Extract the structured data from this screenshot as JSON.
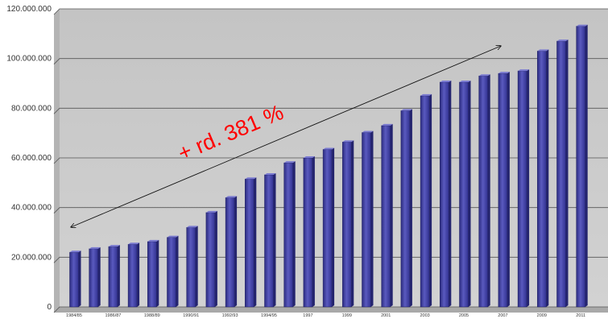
{
  "chart_data": {
    "type": "bar",
    "title": "",
    "xlabel": "",
    "ylabel": "",
    "ylim": [
      0,
      120000000
    ],
    "y_ticks": [
      0,
      20000000,
      40000000,
      60000000,
      80000000,
      100000000,
      120000000
    ],
    "y_tick_labels": [
      "0",
      "20.000.000",
      "40.000.000",
      "60.000.000",
      "80.000.000",
      "100.000.000",
      "120.000.000"
    ],
    "x_tick_labels": [
      "1984/85",
      "1986/87",
      "1988/89",
      "1990/91",
      "1992/93",
      "1994/95",
      "1997",
      "1999",
      "2001",
      "2003",
      "2005",
      "2007",
      "2009",
      "2011"
    ],
    "values": [
      22000000,
      23400000,
      24300000,
      25200000,
      26300000,
      28000000,
      32000000,
      38000000,
      44000000,
      51500000,
      53200000,
      58000000,
      60000000,
      63400000,
      66400000,
      70200000,
      73000000,
      79000000,
      85000000,
      90500000,
      90500000,
      93000000,
      94000000,
      95000000,
      103000000,
      107000000,
      113000000
    ],
    "grid": true,
    "bar_color": "#4a4aa8",
    "plot_background": "#c8c8c8",
    "annotation": {
      "text": "+ rd. 381 %",
      "color": "#ff0000"
    }
  }
}
